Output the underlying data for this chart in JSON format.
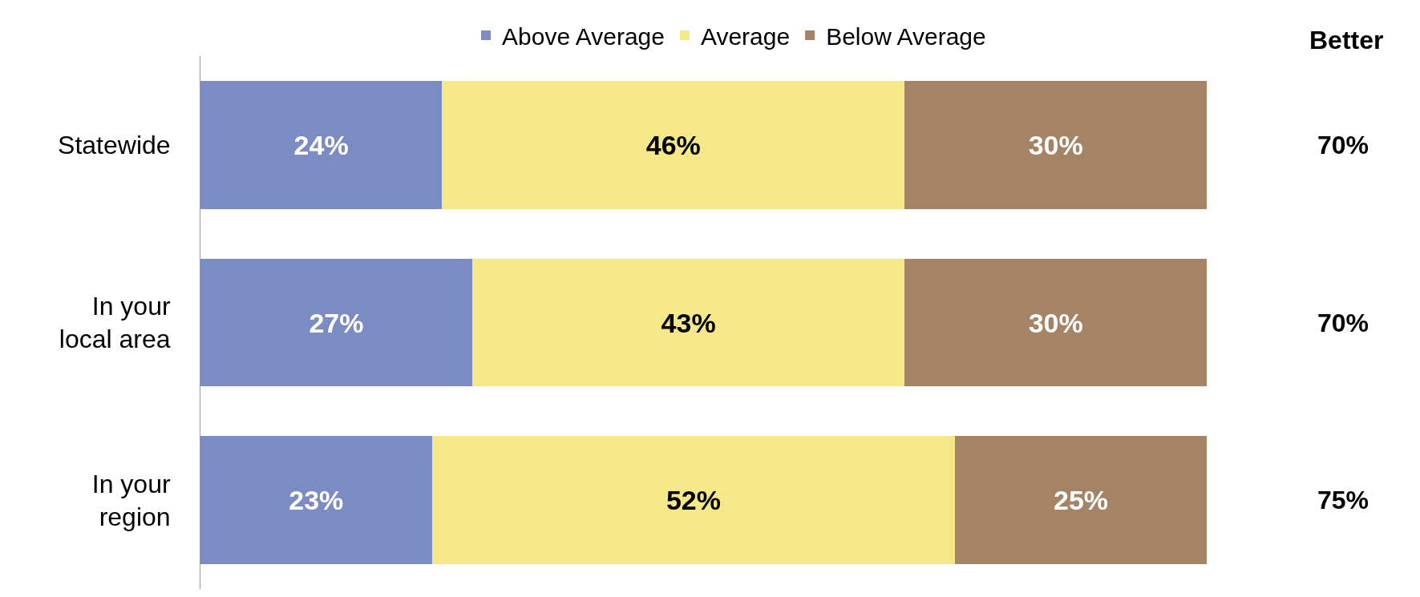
{
  "chart_data": {
    "type": "bar",
    "orientation": "horizontal",
    "stacked": true,
    "categories": [
      "Statewide",
      "In your\nlocal area",
      "In your\nregion"
    ],
    "series": [
      {
        "name": "Above Average",
        "color": "#7b8cc4",
        "values": [
          24,
          27,
          23
        ],
        "value_labels": [
          "24%",
          "27%",
          "23%"
        ]
      },
      {
        "name": "Average",
        "color": "#f5e888",
        "values": [
          46,
          43,
          52
        ],
        "value_labels": [
          "46%",
          "43%",
          "52%"
        ]
      },
      {
        "name": "Below Average",
        "color": "#a48465",
        "values": [
          30,
          30,
          25
        ],
        "value_labels": [
          "30%",
          "30%",
          "25%"
        ]
      }
    ],
    "tick_labels": "y",
    "legend": "top",
    "annotations": [
      "Better",
      "70%",
      "70%",
      "75%"
    ]
  }
}
